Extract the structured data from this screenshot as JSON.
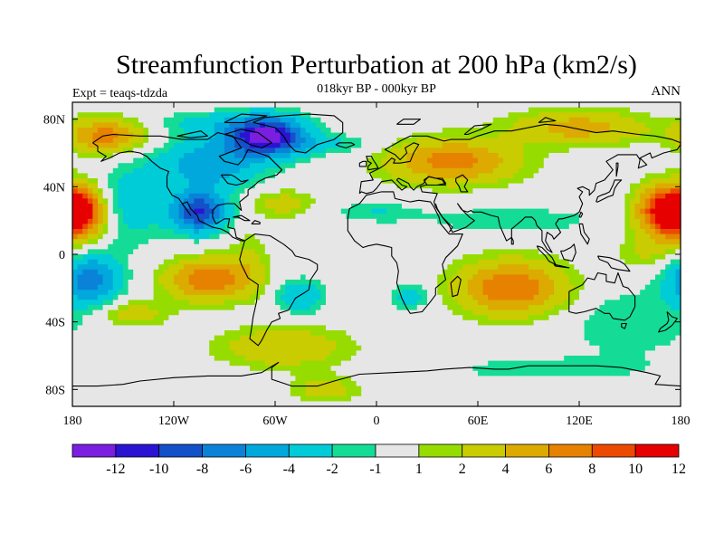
{
  "chart_data": {
    "type": "heatmap",
    "title": "Streamfunction Perturbation at 200 hPa (km2/s)",
    "subtitle": "018kyr BP - 000kyr BP",
    "left_label": "Expt = teaqs-tdzda",
    "right_label": "ANN",
    "x_range": [
      -180,
      180
    ],
    "y_range": [
      -90,
      90
    ],
    "x_ticks": [
      {
        "value": -180,
        "label": "180"
      },
      {
        "value": -120,
        "label": "120W"
      },
      {
        "value": -60,
        "label": "60W"
      },
      {
        "value": 0,
        "label": "0"
      },
      {
        "value": 60,
        "label": "60E"
      },
      {
        "value": 120,
        "label": "120E"
      },
      {
        "value": 180,
        "label": "180"
      }
    ],
    "y_ticks": [
      {
        "value": 80,
        "label": "80N"
      },
      {
        "value": 40,
        "label": "40N"
      },
      {
        "value": 0,
        "label": "0"
      },
      {
        "value": -40,
        "label": "40S"
      },
      {
        "value": -80,
        "label": "80S"
      }
    ],
    "levels": [
      -12,
      -10,
      -8,
      -6,
      -4,
      -2,
      -1,
      1,
      2,
      4,
      6,
      8,
      10,
      12
    ],
    "level_labels": [
      "-12",
      "-10",
      "-8",
      "-6",
      "-4",
      "-2",
      "-1",
      "1",
      "2",
      "4",
      "6",
      "8",
      "10",
      "12"
    ],
    "colors": [
      "#7a1ee0",
      "#2a14d2",
      "#1450c8",
      "#0a82d8",
      "#00a8dc",
      "#00ccd8",
      "#14dc96",
      "#e6e6e6",
      "#96dc00",
      "#c8cc00",
      "#dcaa00",
      "#e68200",
      "#ec4a00",
      "#e60000"
    ],
    "anomaly_centers": [
      {
        "lon": -65,
        "lat": 70,
        "value": -12,
        "rlon": 22,
        "rlat": 11
      },
      {
        "lon": -100,
        "lat": 52,
        "value": -5,
        "rlon": 30,
        "rlat": 14
      },
      {
        "lon": -105,
        "lat": 25,
        "value": -10,
        "rlon": 16,
        "rlat": 12
      },
      {
        "lon": -145,
        "lat": 30,
        "value": -3,
        "rlon": 22,
        "rlat": 24
      },
      {
        "lon": -175,
        "lat": 25,
        "value": 11,
        "rlon": 14,
        "rlat": 15
      },
      {
        "lon": -160,
        "lat": 70,
        "value": 7,
        "rlon": 22,
        "rlat": 10
      },
      {
        "lon": -170,
        "lat": -15,
        "value": -7,
        "rlon": 18,
        "rlat": 15
      },
      {
        "lon": -100,
        "lat": -15,
        "value": 8,
        "rlon": 24,
        "rlat": 12
      },
      {
        "lon": -145,
        "lat": -35,
        "value": 3,
        "rlon": 22,
        "rlat": 8
      },
      {
        "lon": -45,
        "lat": -25,
        "value": -4,
        "rlon": 14,
        "rlat": 10
      },
      {
        "lon": -55,
        "lat": 30,
        "value": 3,
        "rlon": 18,
        "rlat": 8
      },
      {
        "lon": -25,
        "lat": 65,
        "value": -2,
        "rlon": 30,
        "rlat": 6
      },
      {
        "lon": -100,
        "lat": 78,
        "value": -2,
        "rlon": 30,
        "rlat": 6
      },
      {
        "lon": -55,
        "lat": -55,
        "value": 4,
        "rlon": 38,
        "rlat": 12
      },
      {
        "lon": -30,
        "lat": -80,
        "value": 3,
        "rlon": 20,
        "rlat": 8
      },
      {
        "lon": 45,
        "lat": 55,
        "value": 7,
        "rlon": 38,
        "rlat": 13
      },
      {
        "lon": 120,
        "lat": 75,
        "value": 5,
        "rlon": 40,
        "rlat": 10
      },
      {
        "lon": 170,
        "lat": 25,
        "value": 11,
        "rlon": 16,
        "rlat": 15
      },
      {
        "lon": 80,
        "lat": 20,
        "value": -2,
        "rlon": 50,
        "rlat": 8
      },
      {
        "lon": 0,
        "lat": 25,
        "value": -2,
        "rlon": 25,
        "rlat": 6
      },
      {
        "lon": 80,
        "lat": -20,
        "value": 8,
        "rlon": 32,
        "rlat": 16
      },
      {
        "lon": 20,
        "lat": -25,
        "value": -3,
        "rlon": 12,
        "rlat": 8
      },
      {
        "lon": 150,
        "lat": -40,
        "value": -2,
        "rlon": 40,
        "rlat": 20
      },
      {
        "lon": 100,
        "lat": -68,
        "value": -1.5,
        "rlon": 70,
        "rlat": 8
      },
      {
        "lon": 160,
        "lat": 0,
        "value": 2,
        "rlon": 20,
        "rlat": 10
      },
      {
        "lon": -75,
        "lat": -5,
        "value": 2,
        "rlon": 12,
        "rlat": 20
      },
      {
        "lon": -80,
        "lat": 68,
        "value": -1.5,
        "rlon": 40,
        "rlat": 16
      }
    ]
  }
}
